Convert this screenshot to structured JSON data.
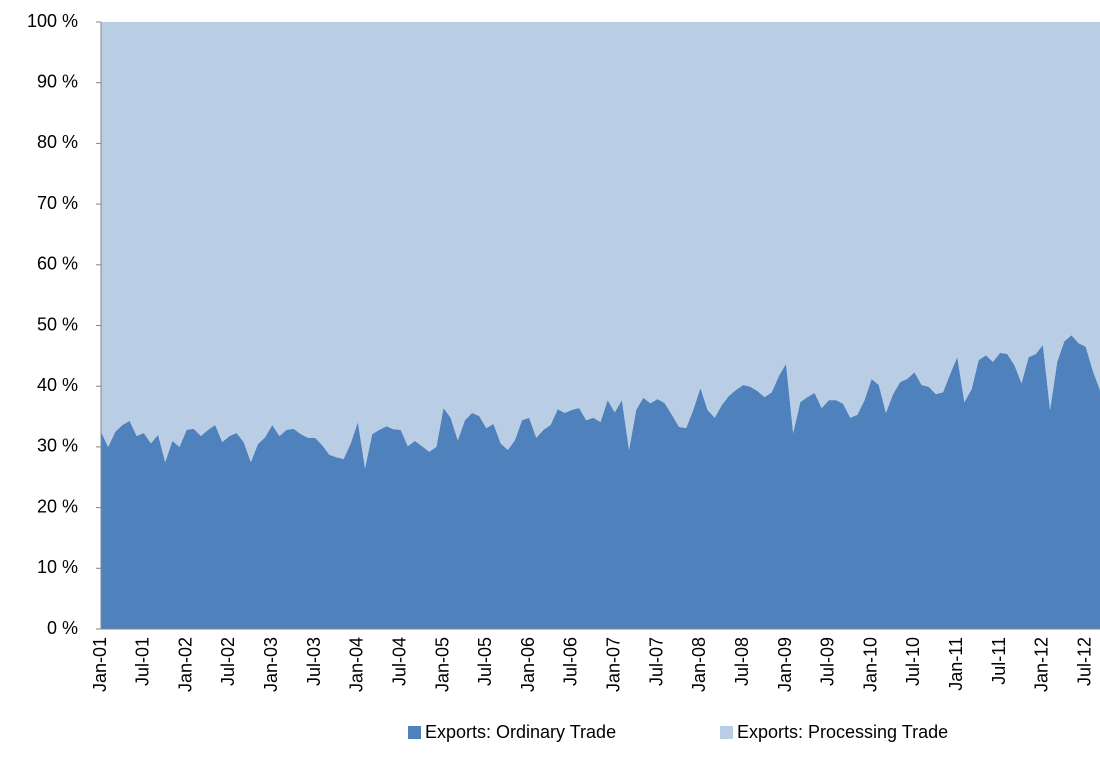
{
  "chart_data": {
    "type": "area",
    "stacked": true,
    "categories": [
      "Jan-01",
      null,
      null,
      null,
      null,
      null,
      "Jul-01",
      null,
      null,
      null,
      null,
      null,
      "Jan-02",
      null,
      null,
      null,
      null,
      null,
      "Jul-02",
      null,
      null,
      null,
      null,
      null,
      "Jan-03",
      null,
      null,
      null,
      null,
      null,
      "Jul-03",
      null,
      null,
      null,
      null,
      null,
      "Jan-04",
      null,
      null,
      null,
      null,
      null,
      "Jul-04",
      null,
      null,
      null,
      null,
      null,
      "Jan-05",
      null,
      null,
      null,
      null,
      null,
      "Jul-05",
      null,
      null,
      null,
      null,
      null,
      "Jan-06",
      null,
      null,
      null,
      null,
      null,
      "Jul-06",
      null,
      null,
      null,
      null,
      null,
      "Jan-07",
      null,
      null,
      null,
      null,
      null,
      "Jul-07",
      null,
      null,
      null,
      null,
      null,
      "Jan-08",
      null,
      null,
      null,
      null,
      null,
      "Jul-08",
      null,
      null,
      null,
      null,
      null,
      "Jan-09",
      null,
      null,
      null,
      null,
      null,
      "Jul-09",
      null,
      null,
      null,
      null,
      null,
      "Jan-10",
      null,
      null,
      null,
      null,
      null,
      "Jul-10",
      null,
      null,
      null,
      null,
      null,
      "Jan-11",
      null,
      null,
      null,
      null,
      null,
      "Jul-11",
      null,
      null,
      null,
      null,
      null,
      "Jan-12",
      null,
      null,
      null,
      null,
      null,
      "Jul-12",
      null,
      null
    ],
    "series": [
      {
        "name": "Exports: Ordinary Trade",
        "color": "#4f81bd",
        "values": [
          32.5,
          30,
          32.5,
          33.6,
          34.3,
          31.8,
          32.3,
          30.6,
          32,
          27.5,
          31,
          30,
          32.8,
          33,
          31.8,
          32.8,
          33.6,
          30.8,
          31.8,
          32.3,
          30.8,
          27.5,
          30.5,
          31.6,
          33.6,
          31.8,
          32.8,
          33,
          32.1,
          31.5,
          31.5,
          30.3,
          28.7,
          28.3,
          28,
          30.6,
          34.1,
          26.5,
          32.1,
          32.8,
          33.4,
          32.9,
          32.8,
          30.1,
          31,
          30.1,
          29.2,
          30,
          36.4,
          34.8,
          31.1,
          34.4,
          35.6,
          35.1,
          33.1,
          33.8,
          30.6,
          29.5,
          31.1,
          34.4,
          34.8,
          31.5,
          32.8,
          33.6,
          36.2,
          35.6,
          36.1,
          36.4,
          34.4,
          34.8,
          34.1,
          37.7,
          35.7,
          37.7,
          29.5,
          36.1,
          38.1,
          37.2,
          37.9,
          37.2,
          35.3,
          33.3,
          33.1,
          36.1,
          39.7,
          36.1,
          34.8,
          36.9,
          38.4,
          39.4,
          40.2,
          39.9,
          39.2,
          38.2,
          39,
          41.7,
          43.7,
          32.3,
          37.4,
          38.2,
          38.9,
          36.4,
          37.7,
          37.7,
          37.1,
          34.8,
          35.3,
          37.7,
          41.2,
          40.2,
          35.6,
          38.7,
          40.7,
          41.2,
          42.3,
          40.2,
          39.9,
          38.7,
          39,
          42,
          44.8,
          37.4,
          39.5,
          44.3,
          45.1,
          44,
          45.5,
          45.3,
          43.5,
          40.5,
          44.8,
          45.3,
          46.8,
          36.1,
          44,
          47.4,
          48.4,
          47.1,
          46.5,
          42.5,
          39.4
        ]
      },
      {
        "name": "Exports: Processing Trade",
        "color": "#b9cde5",
        "values": [
          67.5,
          70,
          67.5,
          66.4,
          65.7,
          68.2,
          67.7,
          69.4,
          68,
          72.5,
          69,
          70,
          67.2,
          67,
          68.2,
          67.2,
          66.4,
          69.2,
          68.2,
          67.7,
          69.2,
          72.5,
          69.5,
          68.4,
          66.4,
          68.2,
          67.2,
          67,
          67.9,
          68.5,
          68.5,
          69.7,
          71.3,
          71.7,
          72,
          69.4,
          65.9,
          73.5,
          67.9,
          67.2,
          66.6,
          67.1,
          67.2,
          69.9,
          69,
          69.9,
          70.8,
          70,
          63.6,
          65.2,
          68.9,
          65.6,
          64.4,
          64.9,
          66.9,
          66.2,
          69.4,
          70.5,
          68.9,
          65.6,
          65.2,
          68.5,
          67.2,
          66.4,
          63.8,
          64.4,
          63.9,
          63.6,
          65.6,
          65.2,
          65.9,
          62.3,
          64.3,
          62.3,
          70.5,
          63.9,
          61.9,
          62.8,
          62.1,
          62.8,
          64.7,
          66.7,
          66.9,
          63.9,
          60.3,
          63.9,
          65.2,
          63.1,
          61.6,
          60.6,
          59.8,
          60.1,
          60.8,
          61.8,
          61,
          58.3,
          56.3,
          67.7,
          62.6,
          61.8,
          61.1,
          63.6,
          62.3,
          62.3,
          62.9,
          65.2,
          64.7,
          62.3,
          58.8,
          59.8,
          64.4,
          61.3,
          59.3,
          58.8,
          57.7,
          59.8,
          60.1,
          61.3,
          61,
          58,
          55.2,
          62.6,
          60.5,
          55.7,
          54.9,
          56,
          54.5,
          54.7,
          56.5,
          59.5,
          55.2,
          54.7,
          53.2,
          63.9,
          56,
          52.6,
          51.6,
          52.9,
          53.5,
          57.5,
          60.6
        ]
      }
    ],
    "ylim": [
      0,
      100
    ],
    "yticks": [
      {
        "value": 0,
        "label": "0 %"
      },
      {
        "value": 10,
        "label": "10 %"
      },
      {
        "value": 20,
        "label": "20 %"
      },
      {
        "value": 30,
        "label": "30 %"
      },
      {
        "value": 40,
        "label": "40 %"
      },
      {
        "value": 50,
        "label": "50 %"
      },
      {
        "value": 60,
        "label": "60 %"
      },
      {
        "value": 70,
        "label": "70 %"
      },
      {
        "value": 80,
        "label": "80 %"
      },
      {
        "value": 90,
        "label": "90 %"
      },
      {
        "value": 100,
        "label": "100 %"
      }
    ],
    "legend": "bottom"
  }
}
